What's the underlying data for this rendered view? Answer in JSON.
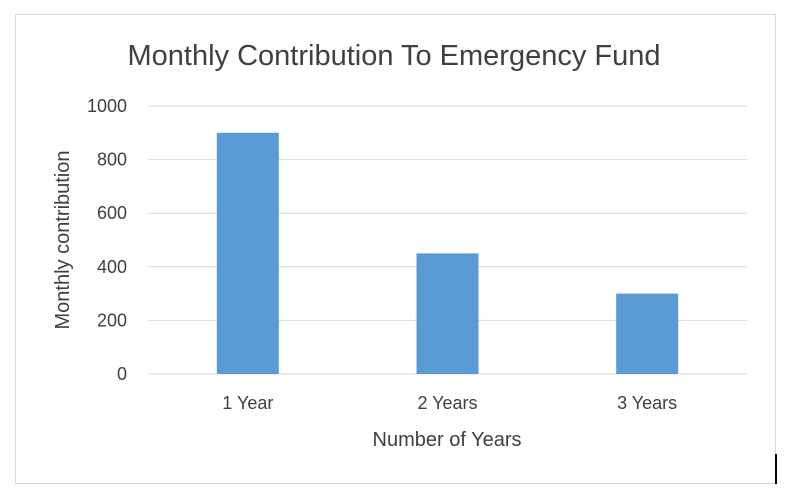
{
  "chart_data": {
    "type": "bar",
    "title": "Monthly Contribution To Emergency Fund",
    "xlabel": "Number of Years",
    "ylabel": "Monthly contribution",
    "categories": [
      "1 Year",
      "2 Years",
      "3 Years"
    ],
    "values": [
      900,
      450,
      300
    ],
    "ylim": [
      0,
      1000
    ],
    "yticks": [
      0,
      200,
      400,
      600,
      800,
      1000
    ],
    "ytick_labels": [
      "0",
      "200",
      "400",
      "600",
      "800",
      "1000"
    ],
    "grid": true,
    "legend": "none",
    "colors": {
      "bar": "#5b9bd5",
      "grid": "#d9d9d9",
      "text": "#404040"
    }
  }
}
